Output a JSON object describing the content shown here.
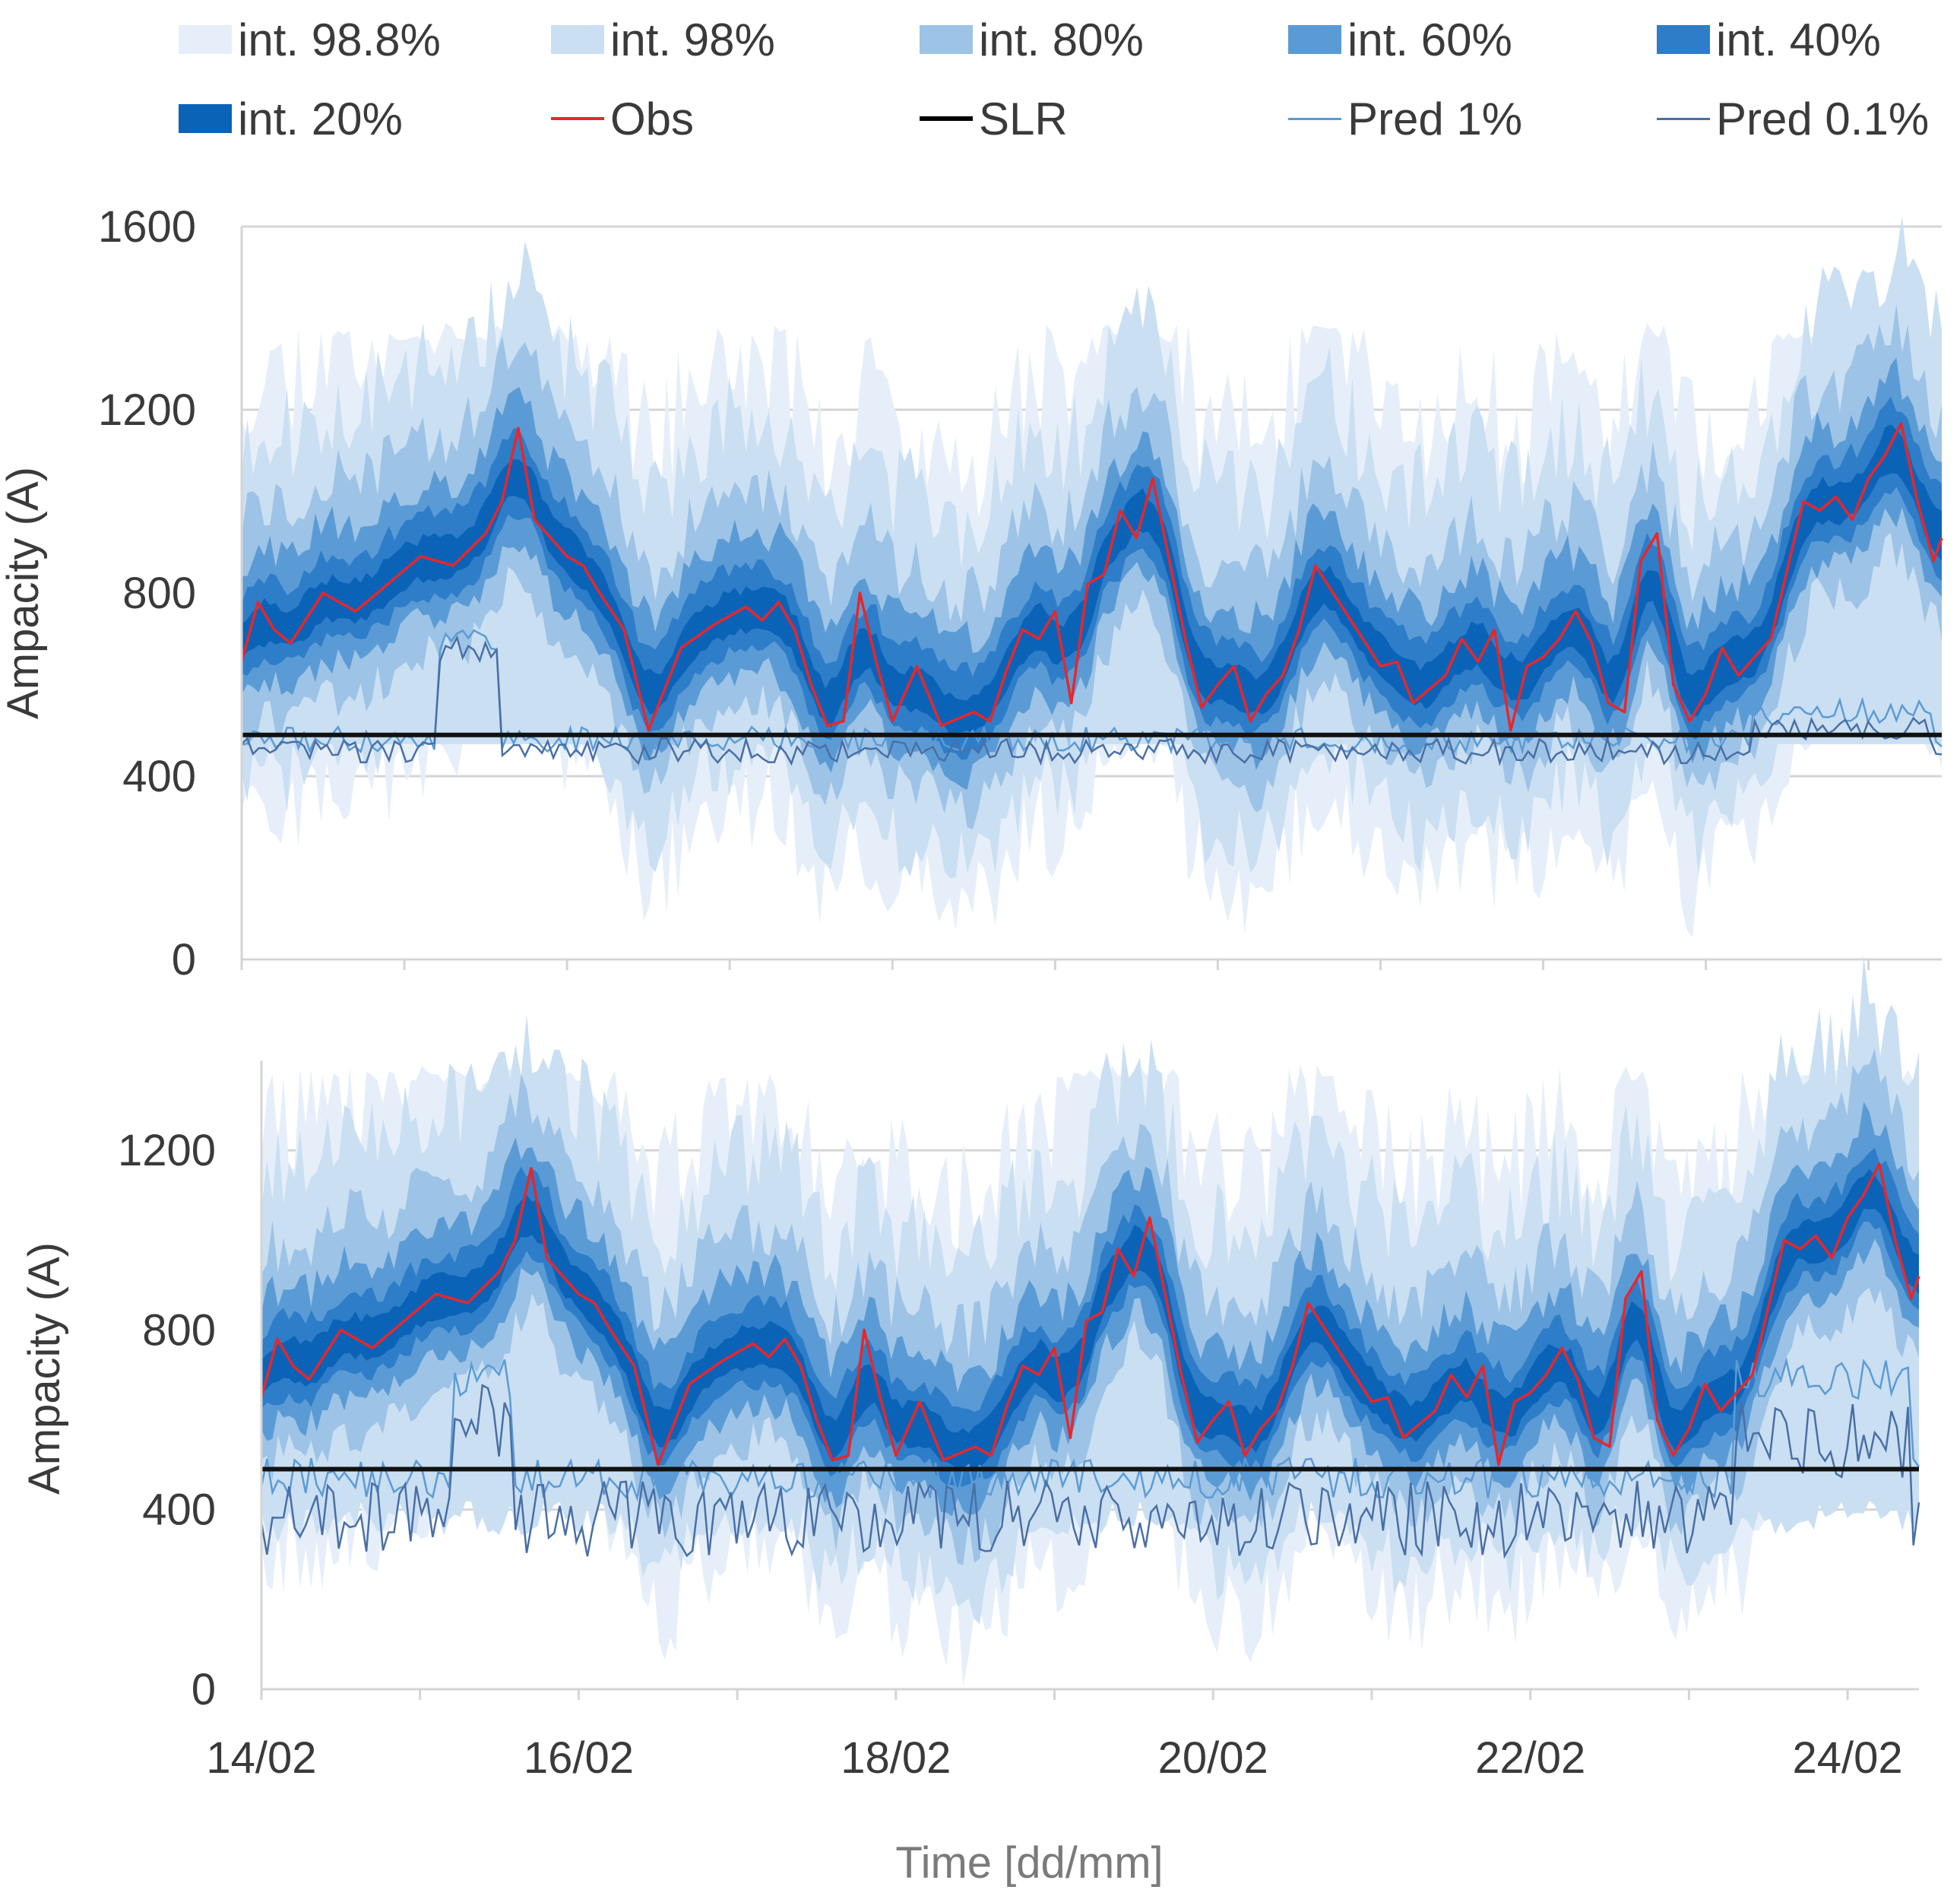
{
  "chart_data": {
    "type": "area",
    "xlabel": "Time [dd/mm]",
    "legend": [
      {
        "label": "int. 98.8%",
        "kind": "band",
        "color": "#e6eff9"
      },
      {
        "label": "int. 98%",
        "kind": "band",
        "color": "#cadff2"
      },
      {
        "label": "int. 80%",
        "kind": "band",
        "color": "#9dc3e6"
      },
      {
        "label": "int. 60%",
        "kind": "band",
        "color": "#5b9bd5"
      },
      {
        "label": "int. 40%",
        "kind": "band",
        "color": "#2e7dc8"
      },
      {
        "label": "int. 20%",
        "kind": "band",
        "color": "#0b63b7"
      },
      {
        "label": "Obs",
        "kind": "line",
        "color": "#e8262b"
      },
      {
        "label": "SLR",
        "kind": "line",
        "color": "#000000"
      },
      {
        "label": "Pred 1%",
        "kind": "line",
        "color": "#5b9bd5"
      },
      {
        "label": "Pred 0.1%",
        "kind": "line",
        "color": "#4a6fa5"
      }
    ],
    "x_ticks": [
      "14/02",
      "16/02",
      "18/02",
      "20/02",
      "22/02",
      "24/02"
    ],
    "x_range_days": [
      0,
      10.45
    ],
    "slr": 490,
    "obs": {
      "t": [
        0,
        0.1,
        0.2,
        0.3,
        0.5,
        0.7,
        0.9,
        1.1,
        1.3,
        1.5,
        1.6,
        1.7,
        1.8,
        1.9,
        2.0,
        2.1,
        2.2,
        2.35,
        2.5,
        2.7,
        2.9,
        3.1,
        3.2,
        3.3,
        3.4,
        3.5,
        3.6,
        3.7,
        3.8,
        3.9,
        4.0,
        4.15,
        4.3,
        4.5,
        4.6,
        4.7,
        4.8,
        4.9,
        5.0,
        5.1,
        5.2,
        5.3,
        5.4,
        5.5,
        5.6,
        5.8,
        5.9,
        6.0,
        6.1,
        6.2,
        6.3,
        6.4,
        6.5,
        6.6,
        6.8,
        7.0,
        7.1,
        7.2,
        7.4,
        7.5,
        7.6,
        7.7,
        7.8,
        7.9,
        8.0,
        8.1,
        8.2,
        8.3,
        8.4,
        8.5,
        8.6,
        8.7,
        8.8,
        8.9,
        9.0,
        9.1,
        9.2,
        9.4,
        9.5,
        9.6,
        9.7,
        9.8,
        9.9,
        10.0,
        10.1,
        10.2,
        10.3,
        10.4,
        10.45
      ],
      "v": [
        650,
        780,
        720,
        690,
        800,
        760,
        820,
        880,
        860,
        930,
        1000,
        1160,
        960,
        920,
        880,
        860,
        800,
        720,
        500,
        680,
        730,
        770,
        740,
        780,
        720,
        600,
        510,
        520,
        800,
        650,
        520,
        640,
        510,
        540,
        520,
        630,
        720,
        700,
        760,
        560,
        820,
        840,
        980,
        920,
        1050,
        700,
        550,
        600,
        640,
        520,
        580,
        620,
        720,
        860,
        750,
        640,
        650,
        560,
        620,
        700,
        650,
        720,
        500,
        640,
        660,
        700,
        760,
        690,
        560,
        540,
        870,
        930,
        600,
        520,
        580,
        680,
        620,
        700,
        850,
        1000,
        980,
        1010,
        960,
        1050,
        1100,
        1170,
        1000,
        870,
        920
      ]
    },
    "series": [
      {
        "name": "panel-top",
        "y_range": [
          0,
          1600
        ],
        "y_ticks": [
          0,
          400,
          800,
          1200,
          1600
        ],
        "ylabel": "Ampacity (A)"
      },
      {
        "name": "panel-bottom",
        "y_range": [
          0,
          1400
        ],
        "y_ticks": [
          0,
          400,
          800,
          1200
        ],
        "ylabel": "Ampacity (A)"
      }
    ]
  }
}
